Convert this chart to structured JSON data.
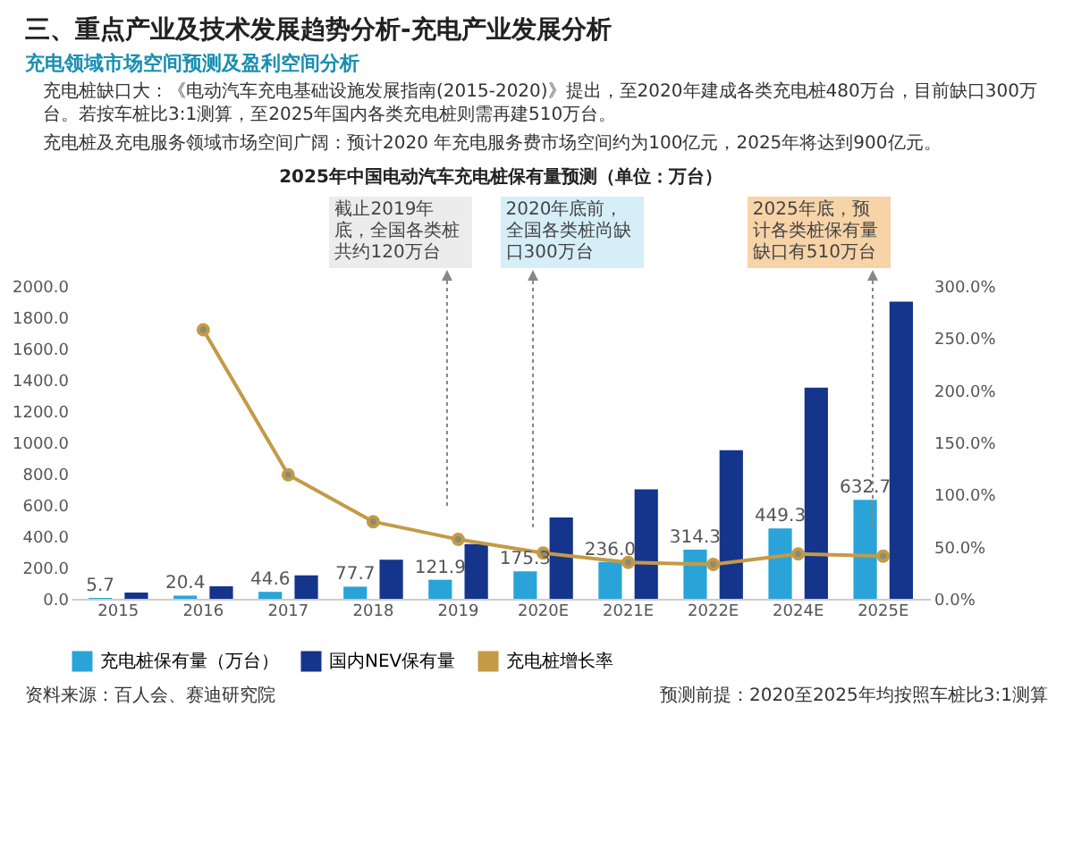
{
  "chart_data": {
    "type": "bar",
    "title": "2025年中国电动汽车充电桩保有量预测（单位：万台）",
    "categories": [
      "2015",
      "2016",
      "2017",
      "2018",
      "2019",
      "2020E",
      "2021E",
      "2022E",
      "2024E",
      "2025E"
    ],
    "series": [
      {
        "name": "充电桩保有量（万台）",
        "color": "#2aa4d8",
        "values": [
          5.7,
          20.4,
          44.6,
          77.7,
          121.9,
          175.3,
          236.0,
          314.3,
          449.3,
          632.7
        ],
        "value_labels": [
          "5.7",
          "20.4",
          "44.6",
          "77.7",
          "121.9",
          "175.3",
          "236.0",
          "314.3",
          "449.3",
          "632.7"
        ]
      },
      {
        "name": "国内NEV保有量",
        "color": "#15348c",
        "values": [
          40,
          80,
          150,
          250,
          350,
          520,
          700,
          950,
          1350,
          1900
        ]
      },
      {
        "name": "充电桩增长率",
        "color": "#c49a45",
        "type": "line",
        "axis": "y2",
        "marker": "circle",
        "values": [
          null,
          258,
          119,
          74,
          57,
          44,
          35,
          33,
          43,
          41
        ]
      }
    ],
    "ylim": [
      0,
      2000
    ],
    "yticks": [
      {
        "value": 0,
        "label": "0.0"
      },
      {
        "value": 200,
        "label": "200.0"
      },
      {
        "value": 400,
        "label": "400.0"
      },
      {
        "value": 600,
        "label": "600.0"
      },
      {
        "value": 800,
        "label": "800.0"
      },
      {
        "value": 1000,
        "label": "1000.0"
      },
      {
        "value": 1200,
        "label": "1200.0"
      },
      {
        "value": 1400,
        "label": "1400.0"
      },
      {
        "value": 1600,
        "label": "1600.0"
      },
      {
        "value": 1800,
        "label": "1800.0"
      },
      {
        "value": 2000,
        "label": "2000.0"
      }
    ],
    "y2lim": [
      0,
      300
    ],
    "y2ticks": [
      {
        "value": 0,
        "label": "0.0%"
      },
      {
        "value": 50,
        "label": "50.0%"
      },
      {
        "value": 100,
        "label": "100.0%"
      },
      {
        "value": 150,
        "label": "150.0%"
      },
      {
        "value": 200,
        "label": "200.0%"
      },
      {
        "value": 250,
        "label": "250.0%"
      },
      {
        "value": 300,
        "label": "300.0%"
      }
    ],
    "legend": "bottom",
    "annotations": [
      "三、重点产业及技术发展趋势分析-充电产业发展分析",
      "充电领域市场空间预测及盈利空间分析",
      "充电桩缺口大：《电动汽车充电基础设施发展指南(2015-2020)》提出，至2020年建成各类充电桩480万台，目前缺口300万台。若按车桩比3:1测算，至2025年国内各类充电桩则需再建510万台。",
      "充电桩及充电服务领域市场空间广阔：预计2020 年充电服务费市场空间约为100亿元，2025年将达到900亿元。",
      "截止2019年底，全国各类桩共约120万台",
      "2020年底前，全国各类桩尚缺口300万台",
      "2025年底，预计各类桩保有量缺口有510万台",
      "资料来源：百人会、赛迪研究院",
      "预测前提：2020至2025年均按照车桩比3:1测算"
    ]
  }
}
